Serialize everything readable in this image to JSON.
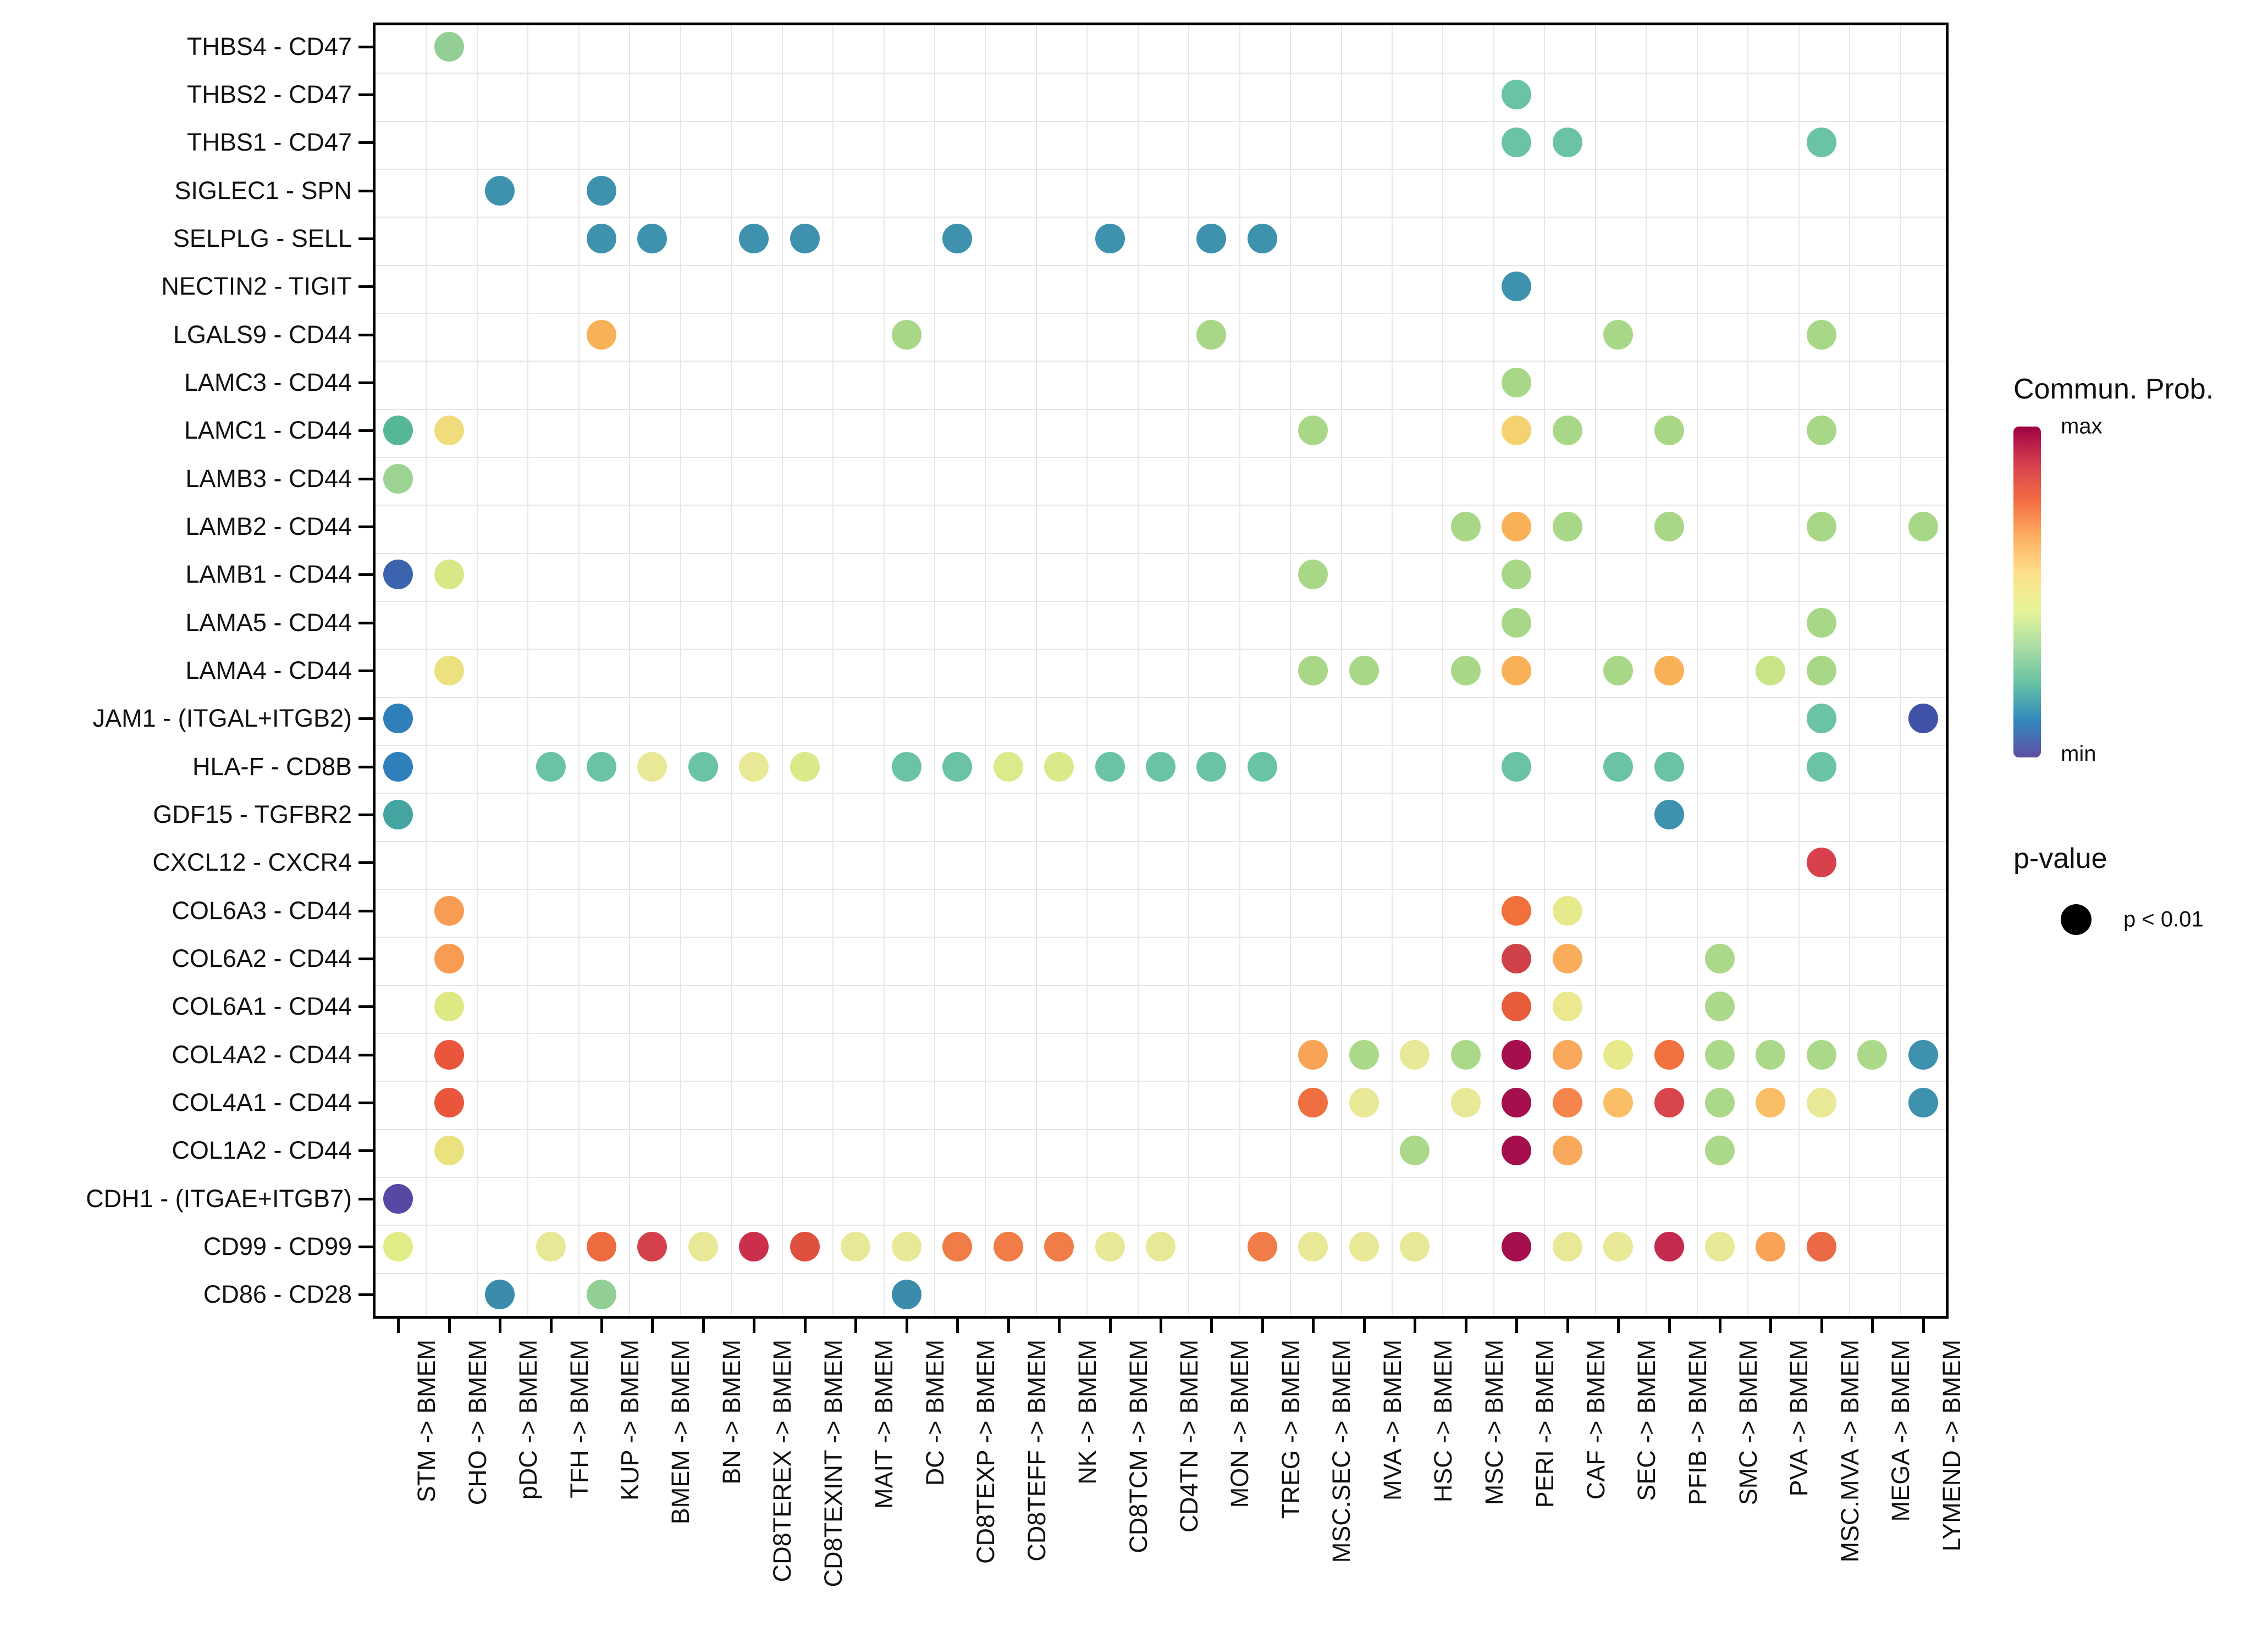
{
  "chart_data": {
    "type": "scatter",
    "title": "",
    "grid": true,
    "point_format": [
      "y_index_1based",
      "x_index_1based",
      "color_hex"
    ],
    "x_categories": [
      "STM -> BMEM",
      "CHO -> BMEM",
      "pDC -> BMEM",
      "TFH -> BMEM",
      "KUP -> BMEM",
      "BMEM -> BMEM",
      "BN -> BMEM",
      "CD8TEREX -> BMEM",
      "CD8TEXINT -> BMEM",
      "MAIT -> BMEM",
      "DC -> BMEM",
      "CD8TEXP -> BMEM",
      "CD8TEFF -> BMEM",
      "NK -> BMEM",
      "CD8TCM -> BMEM",
      "CD4TN -> BMEM",
      "MON -> BMEM",
      "TREG -> BMEM",
      "MSC.SEC -> BMEM",
      "MVA -> BMEM",
      "HSC -> BMEM",
      "MSC -> BMEM",
      "PERI -> BMEM",
      "CAF -> BMEM",
      "SEC -> BMEM",
      "PFIB -> BMEM",
      "SMC -> BMEM",
      "PVA -> BMEM",
      "MSC.MVA -> BMEM",
      "MEGA -> BMEM",
      "LYMEND -> BMEM"
    ],
    "y_categories": [
      "THBS4 - CD47",
      "THBS2 - CD47",
      "THBS1 - CD47",
      "SIGLEC1 - SPN",
      "SELPLG - SELL",
      "NECTIN2 - TIGIT",
      "LGALS9 - CD44",
      "LAMC3 - CD44",
      "LAMC1 - CD44",
      "LAMB3 - CD44",
      "LAMB2 - CD44",
      "LAMB1 - CD44",
      "LAMA5 - CD44",
      "LAMA4 - CD44",
      "JAM1 - (ITGAL+ITGB2)",
      "HLA-F - CD8B",
      "GDF15 - TGFBR2",
      "CXCL12 - CXCR4",
      "COL6A3 - CD44",
      "COL6A2 - CD44",
      "COL6A1 - CD44",
      "COL4A2 - CD44",
      "COL4A1 - CD44",
      "COL1A2 - CD44",
      "CDH1 - (ITGAE+ITGB7)",
      "CD99 - CD99",
      "CD86 - CD28"
    ],
    "points": [
      [
        1,
        2,
        "#93cf94"
      ],
      [
        2,
        23,
        "#6ac3a3"
      ],
      [
        3,
        23,
        "#6ac3a3"
      ],
      [
        3,
        24,
        "#6ac3a3"
      ],
      [
        3,
        29,
        "#6ac3a3"
      ],
      [
        4,
        3,
        "#3e92ae"
      ],
      [
        4,
        5,
        "#3e92ae"
      ],
      [
        5,
        5,
        "#3e92ae"
      ],
      [
        5,
        6,
        "#3e92ae"
      ],
      [
        5,
        8,
        "#3e92ae"
      ],
      [
        5,
        9,
        "#3e92ae"
      ],
      [
        5,
        12,
        "#3e92ae"
      ],
      [
        5,
        15,
        "#3e92ae"
      ],
      [
        5,
        17,
        "#3e92ae"
      ],
      [
        5,
        18,
        "#3e92ae"
      ],
      [
        6,
        23,
        "#3e92ae"
      ],
      [
        7,
        5,
        "#f7b156"
      ],
      [
        7,
        11,
        "#a9d788"
      ],
      [
        7,
        17,
        "#a9d788"
      ],
      [
        7,
        25,
        "#a9d788"
      ],
      [
        7,
        29,
        "#a9d788"
      ],
      [
        8,
        23,
        "#a9d788"
      ],
      [
        9,
        1,
        "#56b795"
      ],
      [
        9,
        2,
        "#f0dc7c"
      ],
      [
        9,
        19,
        "#a9d788"
      ],
      [
        9,
        23,
        "#f4d26f"
      ],
      [
        9,
        24,
        "#a9d788"
      ],
      [
        9,
        26,
        "#a9d788"
      ],
      [
        9,
        29,
        "#a9d788"
      ],
      [
        10,
        1,
        "#9cd393"
      ],
      [
        11,
        22,
        "#a9d788"
      ],
      [
        11,
        23,
        "#f9b158"
      ],
      [
        11,
        24,
        "#a9d788"
      ],
      [
        11,
        26,
        "#a9d788"
      ],
      [
        11,
        29,
        "#a9d788"
      ],
      [
        11,
        31,
        "#a9d788"
      ],
      [
        12,
        1,
        "#3c64ae"
      ],
      [
        12,
        2,
        "#d7e986"
      ],
      [
        12,
        19,
        "#a9d788"
      ],
      [
        12,
        23,
        "#a9d788"
      ],
      [
        13,
        23,
        "#a9d788"
      ],
      [
        13,
        29,
        "#a9d788"
      ],
      [
        14,
        2,
        "#ece17f"
      ],
      [
        14,
        19,
        "#a9d788"
      ],
      [
        14,
        20,
        "#a9d788"
      ],
      [
        14,
        22,
        "#a9d788"
      ],
      [
        14,
        23,
        "#f9b158"
      ],
      [
        14,
        25,
        "#a9d788"
      ],
      [
        14,
        26,
        "#f9b158"
      ],
      [
        14,
        28,
        "#c9e487"
      ],
      [
        14,
        29,
        "#a9d788"
      ],
      [
        15,
        1,
        "#2f80ba"
      ],
      [
        15,
        29,
        "#6ac3a3"
      ],
      [
        15,
        31,
        "#4053a8"
      ],
      [
        16,
        1,
        "#2f80ba"
      ],
      [
        16,
        4,
        "#6ac3a3"
      ],
      [
        16,
        5,
        "#6ac3a3"
      ],
      [
        16,
        6,
        "#e9e896"
      ],
      [
        16,
        7,
        "#6ac3a3"
      ],
      [
        16,
        8,
        "#e9e896"
      ],
      [
        16,
        9,
        "#d9ea8b"
      ],
      [
        16,
        11,
        "#6ac3a3"
      ],
      [
        16,
        12,
        "#6ac3a3"
      ],
      [
        16,
        13,
        "#dcea8b"
      ],
      [
        16,
        14,
        "#d9ea8b"
      ],
      [
        16,
        15,
        "#6ac3a3"
      ],
      [
        16,
        16,
        "#6ac3a3"
      ],
      [
        16,
        17,
        "#6ac3a3"
      ],
      [
        16,
        18,
        "#6ac3a3"
      ],
      [
        16,
        23,
        "#6ac3a3"
      ],
      [
        16,
        25,
        "#6ac3a3"
      ],
      [
        16,
        26,
        "#6ac3a3"
      ],
      [
        16,
        29,
        "#6ac3a3"
      ],
      [
        17,
        1,
        "#44a4a0"
      ],
      [
        17,
        26,
        "#3e92ae"
      ],
      [
        18,
        29,
        "#d8404c"
      ],
      [
        19,
        2,
        "#f89c54"
      ],
      [
        19,
        23,
        "#f2703c"
      ],
      [
        19,
        24,
        "#e7ea8c"
      ],
      [
        20,
        2,
        "#f89c54"
      ],
      [
        20,
        23,
        "#d04249"
      ],
      [
        20,
        24,
        "#f9ad5b"
      ],
      [
        20,
        27,
        "#abd989"
      ],
      [
        21,
        2,
        "#dfe984"
      ],
      [
        21,
        23,
        "#e85c3c"
      ],
      [
        21,
        24,
        "#ebe88f"
      ],
      [
        21,
        27,
        "#abd989"
      ],
      [
        22,
        2,
        "#e9563c"
      ],
      [
        22,
        19,
        "#f8a355"
      ],
      [
        22,
        20,
        "#abd989"
      ],
      [
        22,
        21,
        "#e9e896"
      ],
      [
        22,
        22,
        "#abd989"
      ],
      [
        22,
        23,
        "#a50f4d"
      ],
      [
        22,
        24,
        "#f9a85c"
      ],
      [
        22,
        25,
        "#e7e98c"
      ],
      [
        22,
        26,
        "#f1713f"
      ],
      [
        22,
        27,
        "#abd989"
      ],
      [
        22,
        28,
        "#abd989"
      ],
      [
        22,
        29,
        "#abd989"
      ],
      [
        22,
        30,
        "#abd989"
      ],
      [
        22,
        31,
        "#3e92ae"
      ],
      [
        23,
        2,
        "#e9563c"
      ],
      [
        23,
        19,
        "#ef6f41"
      ],
      [
        23,
        20,
        "#e9e896"
      ],
      [
        23,
        22,
        "#e9e896"
      ],
      [
        23,
        23,
        "#a50f4d"
      ],
      [
        23,
        24,
        "#f5854c"
      ],
      [
        23,
        25,
        "#fabf66"
      ],
      [
        23,
        26,
        "#d8454a"
      ],
      [
        23,
        27,
        "#abd989"
      ],
      [
        23,
        28,
        "#fabf66"
      ],
      [
        23,
        29,
        "#e9e896"
      ],
      [
        23,
        31,
        "#3e92ae"
      ],
      [
        24,
        2,
        "#e9e27f"
      ],
      [
        24,
        21,
        "#abd989"
      ],
      [
        24,
        23,
        "#a50f4d"
      ],
      [
        24,
        24,
        "#f9a95c"
      ],
      [
        24,
        27,
        "#abd989"
      ],
      [
        25,
        1,
        "#5649a3"
      ],
      [
        26,
        1,
        "#e2ec86"
      ],
      [
        26,
        4,
        "#e9e896"
      ],
      [
        26,
        5,
        "#ee6a3f"
      ],
      [
        26,
        6,
        "#d4414c"
      ],
      [
        26,
        7,
        "#e9e896"
      ],
      [
        26,
        8,
        "#cb2f4c"
      ],
      [
        26,
        9,
        "#e0503f"
      ],
      [
        26,
        10,
        "#e9e896"
      ],
      [
        26,
        11,
        "#e9e896"
      ],
      [
        26,
        12,
        "#f07d47"
      ],
      [
        26,
        13,
        "#f07d47"
      ],
      [
        26,
        14,
        "#f07d47"
      ],
      [
        26,
        15,
        "#e9e896"
      ],
      [
        26,
        16,
        "#e9e896"
      ],
      [
        26,
        18,
        "#f07d47"
      ],
      [
        26,
        19,
        "#e9e896"
      ],
      [
        26,
        20,
        "#e9e896"
      ],
      [
        26,
        21,
        "#e9e896"
      ],
      [
        26,
        23,
        "#a50f4d"
      ],
      [
        26,
        24,
        "#e9e896"
      ],
      [
        26,
        25,
        "#e9e896"
      ],
      [
        26,
        26,
        "#c32a4e"
      ],
      [
        26,
        27,
        "#e9e896"
      ],
      [
        26,
        28,
        "#f8a355"
      ],
      [
        26,
        29,
        "#ea6a45"
      ],
      [
        27,
        3,
        "#3b8cab"
      ],
      [
        27,
        5,
        "#93cf94"
      ],
      [
        27,
        11,
        "#3b8cab"
      ]
    ],
    "legend": {
      "color_title": "Commun. Prob.",
      "color_max_label": "max",
      "color_min_label": "min",
      "colorbar_colors_top_to_bottom": [
        "#9E0142",
        "#D53E4F",
        "#F46D43",
        "#FDAE61",
        "#FEE08B",
        "#E6F598",
        "#ABDDA4",
        "#66C2A5",
        "#3288BD",
        "#5E4FA2"
      ],
      "size_title": "p-value",
      "size_item_label": "p < 0.01",
      "size_item_color": "#000000"
    }
  }
}
